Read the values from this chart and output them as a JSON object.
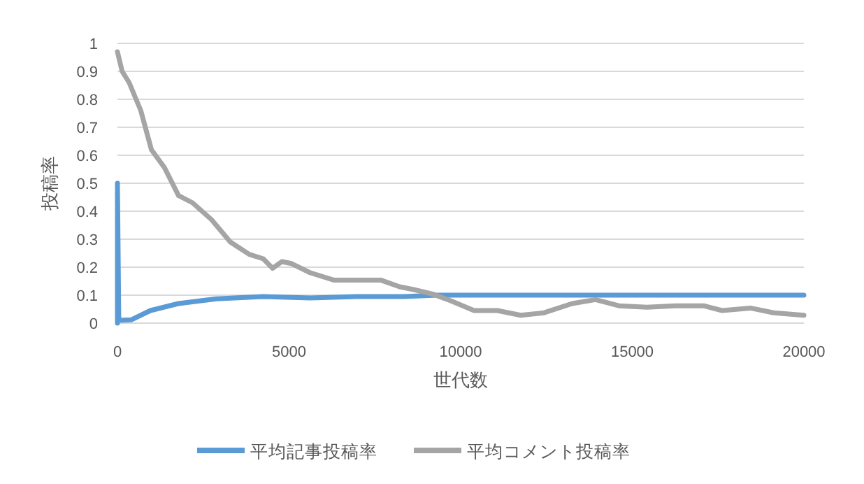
{
  "chart_data": {
    "type": "line",
    "xlabel": "世代数",
    "ylabel": "投稿率",
    "xlim": [
      0,
      20000
    ],
    "xticks": [
      0,
      5000,
      10000,
      15000,
      20000
    ],
    "ylim": [
      0,
      1
    ],
    "yticks": [
      0,
      0.1,
      0.2,
      0.3,
      0.4,
      0.5,
      0.6,
      0.7,
      0.8,
      0.9,
      1
    ],
    "grid": "y",
    "legend": "bottom",
    "series": [
      {
        "name": "平均記事投稿率",
        "color": "#5b9bd5",
        "x": [
          0,
          0,
          40,
          410,
          960,
          1780,
          2880,
          4250,
          5620,
          6990,
          8360,
          9300,
          10400,
          11500,
          12600,
          13700,
          14800,
          15900,
          17000,
          18100,
          19200,
          20000
        ],
        "values": [
          0.0,
          0.5,
          0.01,
          0.012,
          0.045,
          0.07,
          0.087,
          0.095,
          0.09,
          0.095,
          0.095,
          0.1,
          0.1,
          0.1,
          0.1,
          0.1,
          0.1,
          0.1,
          0.1,
          0.1,
          0.1,
          0.1
        ]
      },
      {
        "name": "平均コメント投稿率",
        "color": "#a5a5a5",
        "x": [
          0,
          137,
          340,
          680,
          990,
          1370,
          1780,
          2190,
          2740,
          3290,
          3840,
          4250,
          4520,
          4790,
          5070,
          5620,
          6300,
          6990,
          7670,
          8220,
          8630,
          9180,
          9710,
          10390,
          11070,
          11750,
          12430,
          13250,
          13930,
          14610,
          15430,
          16250,
          17080,
          17620,
          18440,
          19120,
          20000
        ],
        "values": [
          0.97,
          0.9,
          0.86,
          0.76,
          0.62,
          0.556,
          0.456,
          0.43,
          0.37,
          0.29,
          0.246,
          0.23,
          0.196,
          0.22,
          0.213,
          0.18,
          0.154,
          0.154,
          0.154,
          0.13,
          0.12,
          0.104,
          0.08,
          0.045,
          0.045,
          0.028,
          0.037,
          0.07,
          0.084,
          0.062,
          0.057,
          0.062,
          0.062,
          0.045,
          0.054,
          0.037,
          0.028
        ]
      }
    ]
  }
}
